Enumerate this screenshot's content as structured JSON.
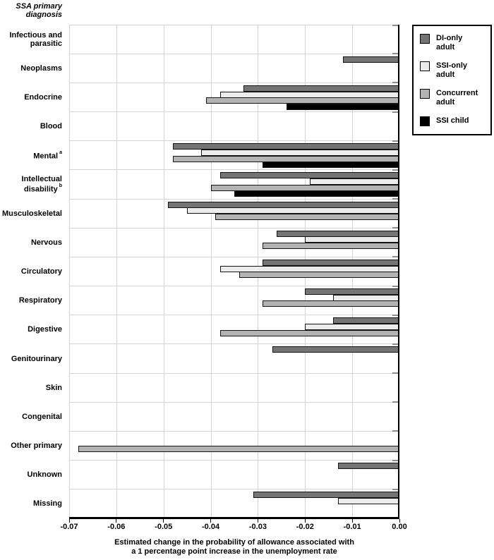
{
  "header": {
    "title": "SSA primary diagnosis",
    "title_lines": [
      "SSA primary",
      "diagnosis"
    ]
  },
  "legend": {
    "items": [
      {
        "label": "DI-only adult",
        "color": "#747474"
      },
      {
        "label": "SSI-only adult",
        "color": "#ececec"
      },
      {
        "label": "Concurrent adult",
        "color": "#b3b3b3"
      },
      {
        "label": "SSI child",
        "color": "#000000"
      }
    ]
  },
  "chart_data": {
    "type": "bar",
    "orientation": "horizontal",
    "title": "SSA primary diagnosis",
    "xlabel": "Estimated change in the probability of allowance associated with a 1 percentage point increase in the unemployment rate",
    "xlabel_lines": [
      "Estimated change in the probability of allowance associated with",
      "a 1 percentage point increase in the unemployment rate"
    ],
    "xlim": [
      -0.07,
      0.0
    ],
    "x_ticks": [
      "-0.07",
      "-0.06",
      "-0.05",
      "-0.04",
      "-0.03",
      "-0.02",
      "-0.01",
      "0.00"
    ],
    "grid": true,
    "legend_position": "top-right",
    "categories": [
      {
        "label": "Infectious and parasitic",
        "sup": ""
      },
      {
        "label": "Neoplasms",
        "sup": ""
      },
      {
        "label": "Endocrine",
        "sup": ""
      },
      {
        "label": "Blood",
        "sup": ""
      },
      {
        "label": "Mental",
        "sup": "a"
      },
      {
        "label": "Intellectual disability",
        "sup": "b"
      },
      {
        "label": "Musculoskeletal",
        "sup": ""
      },
      {
        "label": "Nervous",
        "sup": ""
      },
      {
        "label": "Circulatory",
        "sup": ""
      },
      {
        "label": "Respiratory",
        "sup": ""
      },
      {
        "label": "Digestive",
        "sup": ""
      },
      {
        "label": "Genitourinary",
        "sup": ""
      },
      {
        "label": "Skin",
        "sup": ""
      },
      {
        "label": "Congenital",
        "sup": ""
      },
      {
        "label": "Other primary",
        "sup": ""
      },
      {
        "label": "Unknown",
        "sup": ""
      },
      {
        "label": "Missing",
        "sup": ""
      }
    ],
    "series": [
      {
        "name": "DI-only adult",
        "color": "#747474",
        "values": [
          null,
          -0.012,
          -0.033,
          null,
          -0.048,
          -0.038,
          -0.049,
          -0.026,
          -0.029,
          -0.02,
          -0.014,
          -0.027,
          null,
          null,
          null,
          -0.013,
          -0.031
        ]
      },
      {
        "name": "SSI-only adult",
        "color": "#ececec",
        "values": [
          null,
          null,
          -0.038,
          null,
          -0.042,
          -0.019,
          -0.045,
          -0.02,
          -0.038,
          -0.014,
          -0.02,
          null,
          null,
          null,
          null,
          null,
          -0.013
        ]
      },
      {
        "name": "Concurrent adult",
        "color": "#b3b3b3",
        "values": [
          null,
          null,
          -0.041,
          null,
          -0.048,
          -0.04,
          -0.039,
          -0.029,
          -0.034,
          -0.029,
          -0.038,
          null,
          null,
          null,
          -0.068,
          null,
          null
        ]
      },
      {
        "name": "SSI child",
        "color": "#000000",
        "values": [
          null,
          null,
          -0.024,
          null,
          -0.029,
          -0.035,
          null,
          null,
          null,
          null,
          null,
          null,
          null,
          null,
          null,
          null,
          null
        ]
      }
    ]
  }
}
